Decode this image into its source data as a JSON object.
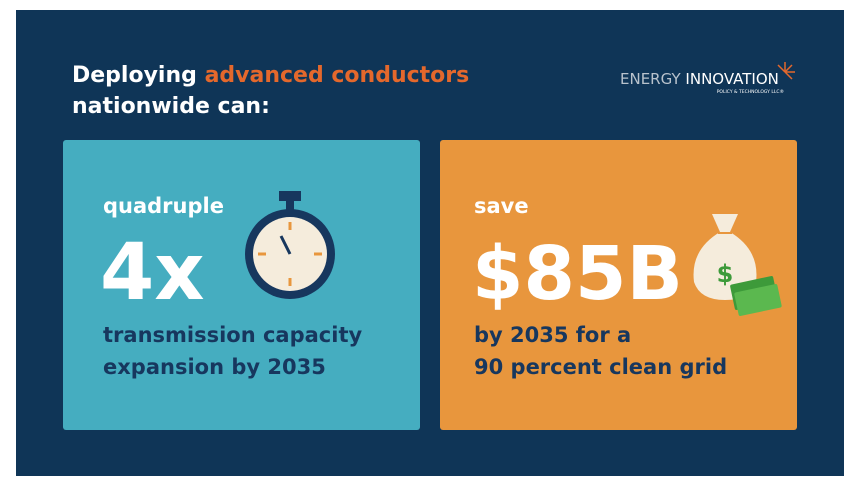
{
  "header": {
    "title_start": "Deploying",
    "title_highlight": "advanced conductors",
    "title_end": "nationwide can:"
  },
  "logo": {
    "name_1": "ENERGY",
    "name_2": "INNOVATION",
    "tagline": "POLICY & TECHNOLOGY LLC®"
  },
  "cards": [
    {
      "label": "quadruple",
      "figure": "4x",
      "lines": [
        "transmission capacity",
        "expansion by 2035"
      ]
    },
    {
      "label": "save",
      "figure": "$85B",
      "lines": [
        "by 2035 for a",
        "90 percent clean grid"
      ]
    }
  ]
}
